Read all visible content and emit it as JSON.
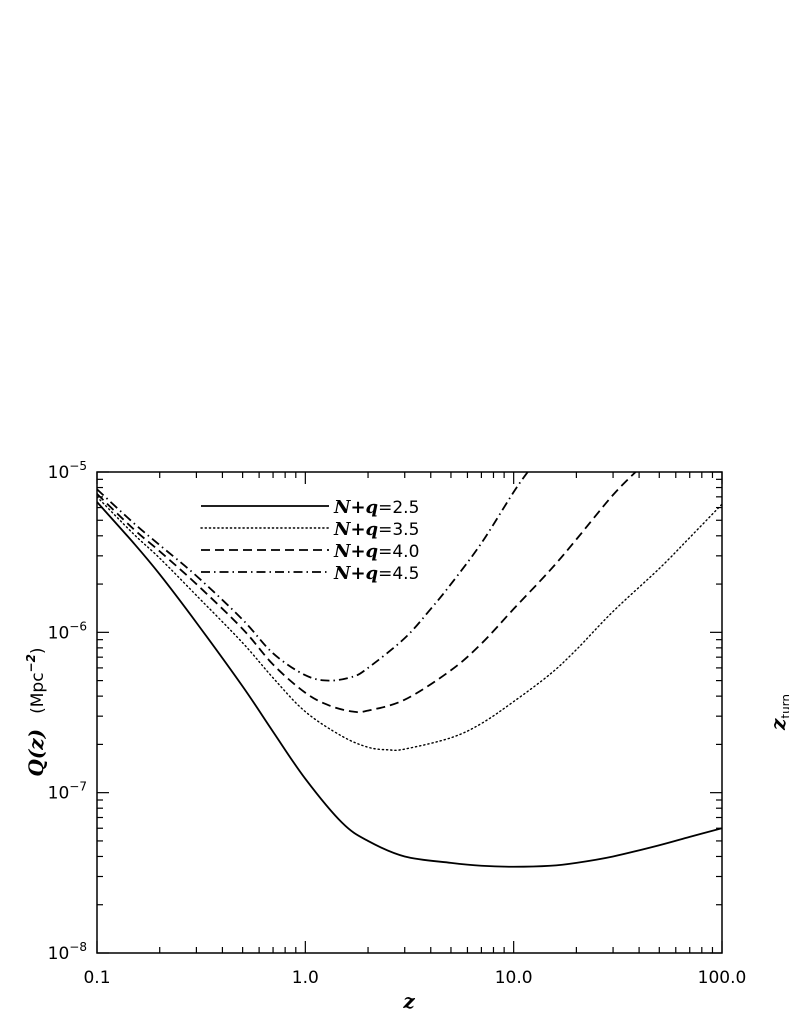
{
  "chart_data": {
    "type": "line",
    "xscale": "log",
    "yscale": "log",
    "xlim": [
      0.1,
      100.0
    ],
    "ylim": [
      1e-08,
      1e-05
    ],
    "xticks": [
      {
        "value": 0.1,
        "label": "0.1"
      },
      {
        "value": 1.0,
        "label": "1.0"
      },
      {
        "value": 10.0,
        "label": "10.0"
      },
      {
        "value": 100.0,
        "label": "100.0"
      }
    ],
    "yticks": [
      {
        "value": 1e-08,
        "base": "10",
        "exp": "−8"
      },
      {
        "value": 1e-07,
        "base": "10",
        "exp": "−7"
      },
      {
        "value": 1e-06,
        "base": "10",
        "exp": "−6"
      },
      {
        "value": 1e-05,
        "base": "10",
        "exp": "−5"
      }
    ],
    "xlabel": "z",
    "ylabel": {
      "main": "Q(z)",
      "unit_pre": "(Mpc",
      "unit_exp": "−2",
      "unit_post": ")"
    },
    "side_label": {
      "main": "z",
      "sub": "turn"
    },
    "legend": {
      "placement": "top-left"
    },
    "series": [
      {
        "name": "N+q=2.5",
        "name_main": "N+q",
        "name_value": "=2.5",
        "style": "solid",
        "x": [
          0.1,
          0.15,
          0.2,
          0.3,
          0.5,
          0.7,
          1.0,
          1.5,
          2.0,
          3.0,
          5.0,
          7.0,
          10.0,
          15.0,
          20.0,
          30.0,
          50.0,
          70.0,
          100.0
        ],
        "y": [
          6.5e-06,
          3.6e-06,
          2.3e-06,
          1.15e-06,
          4.6e-07,
          2.4e-07,
          1.22e-07,
          6.5e-08,
          5e-08,
          4e-08,
          3.65e-08,
          3.5e-08,
          3.45e-08,
          3.5e-08,
          3.65e-08,
          4e-08,
          4.7e-08,
          5.3e-08,
          6e-08
        ]
      },
      {
        "name": "N+q=3.5",
        "name_main": "N+q",
        "name_value": "=3.5",
        "style": "dotted",
        "x": [
          0.1,
          0.15,
          0.2,
          0.3,
          0.5,
          0.7,
          1.0,
          1.5,
          2.0,
          2.5,
          3.0,
          5.0,
          7.0,
          10.0,
          15.0,
          20.0,
          30.0,
          50.0,
          70.0,
          100.0
        ],
        "y": [
          7e-06,
          4.1e-06,
          2.9e-06,
          1.7e-06,
          8.6e-07,
          5.2e-07,
          3.2e-07,
          2.25e-07,
          1.92e-07,
          1.85e-07,
          1.87e-07,
          2.2e-07,
          2.7e-07,
          3.7e-07,
          5.5e-07,
          7.8e-07,
          1.35e-06,
          2.5e-06,
          3.9e-06,
          6.3e-06
        ]
      },
      {
        "name": "N+q=4.0",
        "name_main": "N+q",
        "name_value": "=4.0",
        "style": "dashed",
        "x": [
          0.1,
          0.15,
          0.2,
          0.3,
          0.5,
          0.7,
          1.0,
          1.3,
          1.7,
          2.0,
          3.0,
          5.0,
          7.0,
          10.0,
          15.0,
          20.0,
          30.0,
          40.0
        ],
        "y": [
          7.3e-06,
          4.4e-06,
          3.2e-06,
          2e-06,
          1.05e-06,
          6.3e-07,
          4.2e-07,
          3.5e-07,
          3.2e-07,
          3.25e-07,
          3.8e-07,
          5.8e-07,
          8.5e-07,
          1.4e-06,
          2.45e-06,
          3.8e-06,
          7.2e-06,
          1.05e-05
        ]
      },
      {
        "name": "N+q=4.5",
        "name_main": "N+q",
        "name_value": "=4.5",
        "style": "dashdot",
        "x": [
          0.1,
          0.15,
          0.2,
          0.3,
          0.5,
          0.7,
          1.0,
          1.3,
          1.7,
          2.0,
          3.0,
          4.0,
          5.0,
          7.0,
          10.0,
          12.0
        ],
        "y": [
          7.8e-06,
          4.8e-06,
          3.5e-06,
          2.25e-06,
          1.2e-06,
          7.4e-07,
          5.4e-07,
          5e-07,
          5.3e-07,
          6e-07,
          9.2e-07,
          1.4e-06,
          2e-06,
          3.6e-06,
          7.5e-06,
          1.05e-05
        ]
      }
    ]
  }
}
